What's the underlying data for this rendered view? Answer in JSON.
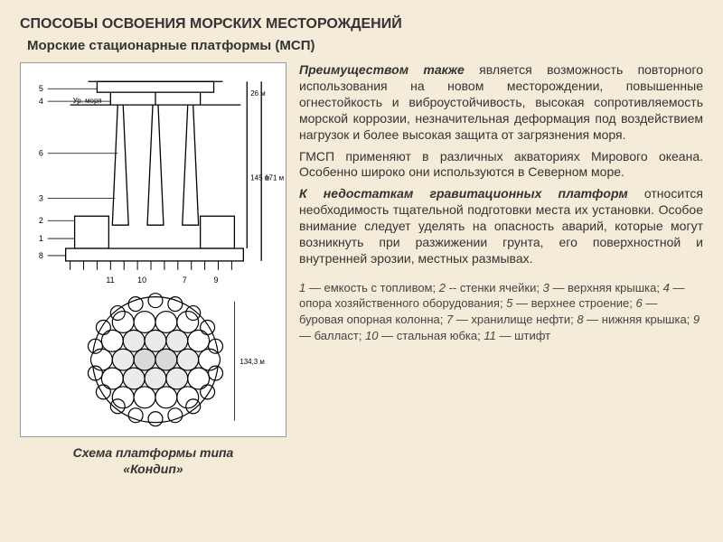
{
  "title": "СПОСОБЫ ОСВОЕНИЯ МОРСКИХ МЕСТОРОЖДЕНИЙ",
  "subtitle": "Морские стационарные платформы (МСП)",
  "caption_line1": "Схема платформы типа",
  "caption_line2": "«Кондип»",
  "para1_lead": "Преимуществом также",
  "para1_rest": " является возможность повторного использования на новом месторождении, повышенные огнестойкость и виброустойчивость, высокая сопротивляемость морской коррозии, незначительная деформация под воздействием нагрузок и более высокая защита от загрязнения моря.",
  "para2": "ГМСП применяют в различных акваториях Мирового океана. Особенно широко они используются в Северном море.",
  "para3_lead": "К недостаткам гравитационных платформ",
  "para3_rest": " относится необходимость тщательной подготовки места их установки. Особое внимание следует уделять на опасность аварий, которые могут возникнуть при разжижении грунта, его поверхностной и внутренней эрозии, местных размывах.",
  "legend_items": [
    {
      "n": "1",
      "t": "емкость с топливом"
    },
    {
      "n": "2",
      "t": "стенки ячейки",
      "sep": " -- "
    },
    {
      "n": "3",
      "t": "верхняя крышка"
    },
    {
      "n": "4",
      "t": "опора хозяйственного оборудования"
    },
    {
      "n": "5",
      "t": "верхнее строение"
    },
    {
      "n": "6",
      "t": "буровая опорная колонна"
    },
    {
      "n": "7",
      "t": "хранилище нефти"
    },
    {
      "n": "8",
      "t": "нижняя крышка"
    },
    {
      "n": "9",
      "t": "балласт"
    },
    {
      "n": "10",
      "t": "стальная юбка"
    },
    {
      "n": "11",
      "t": "штифт"
    }
  ],
  "diagram": {
    "type": "engineering-schematic",
    "dim_labels": [
      "26 м",
      "145 м",
      "171 м",
      "134,3 м"
    ],
    "sea_label": "Ур. моря",
    "callouts": [
      "1",
      "2",
      "3",
      "4",
      "5",
      "6",
      "7",
      "8",
      "9",
      "10",
      "11"
    ],
    "line_color": "#000000",
    "fill_hatch": "#000000",
    "bg": "#ffffff"
  },
  "colors": {
    "page_bg": "#f4ecd8",
    "text": "#333333",
    "legend_text": "#444444"
  }
}
